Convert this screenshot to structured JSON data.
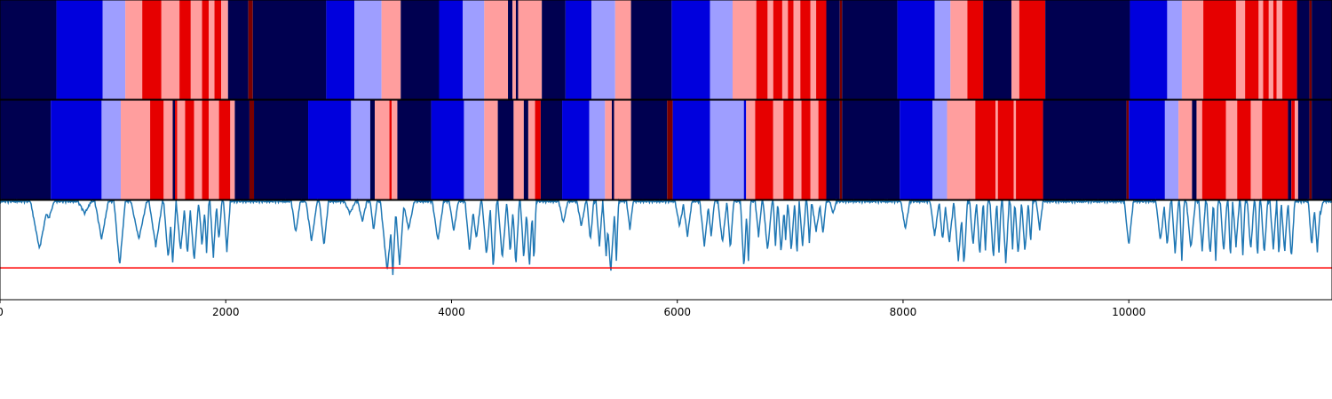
{
  "chart_data": [
    {
      "type": "heatmap",
      "title": "",
      "xlim": [
        0,
        11800
      ],
      "colors": {
        "0": "#000050",
        "1": "#0000dd",
        "2": "#9e9eff",
        "3": "#ff9e9e",
        "4": "#e60000",
        "5": "#7a0000"
      },
      "segments": [
        [
          0,
          500,
          0
        ],
        [
          500,
          910,
          1
        ],
        [
          910,
          1110,
          2
        ],
        [
          1110,
          1260,
          3
        ],
        [
          1260,
          1430,
          4
        ],
        [
          1430,
          1590,
          3
        ],
        [
          1590,
          1690,
          4
        ],
        [
          1690,
          1790,
          3
        ],
        [
          1790,
          1850,
          4
        ],
        [
          1850,
          1900,
          3
        ],
        [
          1900,
          1960,
          4
        ],
        [
          1960,
          2020,
          3
        ],
        [
          2020,
          2200,
          0
        ],
        [
          2200,
          2240,
          5
        ],
        [
          2240,
          2890,
          0
        ],
        [
          2890,
          3140,
          1
        ],
        [
          3140,
          3380,
          2
        ],
        [
          3380,
          3550,
          3
        ],
        [
          3550,
          3890,
          0
        ],
        [
          3890,
          4100,
          1
        ],
        [
          4100,
          4290,
          2
        ],
        [
          4290,
          4500,
          3
        ],
        [
          4500,
          4540,
          0
        ],
        [
          4540,
          4570,
          3
        ],
        [
          4570,
          4590,
          0
        ],
        [
          4590,
          4800,
          3
        ],
        [
          4800,
          5010,
          0
        ],
        [
          5010,
          5240,
          1
        ],
        [
          5240,
          5450,
          2
        ],
        [
          5450,
          5590,
          3
        ],
        [
          5590,
          5950,
          0
        ],
        [
          5950,
          6290,
          1
        ],
        [
          6290,
          6490,
          2
        ],
        [
          6490,
          6700,
          3
        ],
        [
          6700,
          6800,
          4
        ],
        [
          6800,
          6850,
          3
        ],
        [
          6850,
          6930,
          4
        ],
        [
          6930,
          6980,
          3
        ],
        [
          6980,
          7030,
          4
        ],
        [
          7030,
          7090,
          3
        ],
        [
          7090,
          7180,
          4
        ],
        [
          7180,
          7230,
          3
        ],
        [
          7230,
          7320,
          4
        ],
        [
          7320,
          7440,
          0
        ],
        [
          7440,
          7460,
          5
        ],
        [
          7460,
          7950,
          0
        ],
        [
          7950,
          8280,
          1
        ],
        [
          8280,
          8420,
          2
        ],
        [
          8420,
          8570,
          3
        ],
        [
          8570,
          8710,
          4
        ],
        [
          8710,
          8960,
          0
        ],
        [
          8960,
          9030,
          3
        ],
        [
          9030,
          9260,
          4
        ],
        [
          9260,
          10010,
          0
        ],
        [
          10010,
          10340,
          1
        ],
        [
          10340,
          10470,
          2
        ],
        [
          10470,
          10660,
          3
        ],
        [
          10660,
          10950,
          4
        ],
        [
          10950,
          11030,
          3
        ],
        [
          11030,
          11150,
          4
        ],
        [
          11150,
          11190,
          3
        ],
        [
          11190,
          11240,
          4
        ],
        [
          11240,
          11280,
          3
        ],
        [
          11280,
          11310,
          4
        ],
        [
          11310,
          11360,
          3
        ],
        [
          11360,
          11490,
          4
        ],
        [
          11490,
          11600,
          0
        ],
        [
          11600,
          11620,
          5
        ],
        [
          11620,
          11800,
          0
        ]
      ]
    },
    {
      "type": "heatmap",
      "title": "",
      "xlim": [
        0,
        11800
      ],
      "segments": [
        [
          0,
          450,
          0
        ],
        [
          450,
          900,
          1
        ],
        [
          900,
          1070,
          2
        ],
        [
          1070,
          1330,
          3
        ],
        [
          1330,
          1450,
          4
        ],
        [
          1450,
          1530,
          3
        ],
        [
          1530,
          1550,
          0
        ],
        [
          1550,
          1570,
          4
        ],
        [
          1570,
          1640,
          3
        ],
        [
          1640,
          1720,
          4
        ],
        [
          1720,
          1790,
          3
        ],
        [
          1790,
          1850,
          4
        ],
        [
          1850,
          1940,
          3
        ],
        [
          1940,
          2040,
          4
        ],
        [
          2040,
          2080,
          3
        ],
        [
          2080,
          2210,
          0
        ],
        [
          2210,
          2250,
          5
        ],
        [
          2250,
          2730,
          0
        ],
        [
          2730,
          3110,
          1
        ],
        [
          3110,
          3280,
          2
        ],
        [
          3280,
          3320,
          0
        ],
        [
          3320,
          3450,
          3
        ],
        [
          3450,
          3470,
          4
        ],
        [
          3470,
          3520,
          3
        ],
        [
          3520,
          3820,
          0
        ],
        [
          3820,
          4110,
          1
        ],
        [
          4110,
          4290,
          2
        ],
        [
          4290,
          4410,
          3
        ],
        [
          4410,
          4550,
          0
        ],
        [
          4550,
          4640,
          3
        ],
        [
          4640,
          4680,
          0
        ],
        [
          4680,
          4740,
          3
        ],
        [
          4740,
          4790,
          4
        ],
        [
          4790,
          4980,
          0
        ],
        [
          4980,
          5220,
          1
        ],
        [
          5220,
          5360,
          2
        ],
        [
          5360,
          5420,
          3
        ],
        [
          5420,
          5440,
          0
        ],
        [
          5440,
          5590,
          3
        ],
        [
          5590,
          5910,
          0
        ],
        [
          5910,
          5960,
          5
        ],
        [
          5960,
          6290,
          1
        ],
        [
          6290,
          6590,
          2
        ],
        [
          6590,
          6610,
          1
        ],
        [
          6610,
          6690,
          3
        ],
        [
          6690,
          6850,
          4
        ],
        [
          6850,
          6940,
          3
        ],
        [
          6940,
          7030,
          4
        ],
        [
          7030,
          7100,
          3
        ],
        [
          7100,
          7180,
          4
        ],
        [
          7180,
          7250,
          3
        ],
        [
          7250,
          7320,
          4
        ],
        [
          7320,
          7440,
          0
        ],
        [
          7440,
          7460,
          5
        ],
        [
          7460,
          7970,
          0
        ],
        [
          7970,
          8260,
          1
        ],
        [
          8260,
          8390,
          2
        ],
        [
          8390,
          8640,
          3
        ],
        [
          8640,
          8820,
          4
        ],
        [
          8820,
          8840,
          3
        ],
        [
          8840,
          8980,
          4
        ],
        [
          8980,
          9000,
          3
        ],
        [
          9000,
          9240,
          4
        ],
        [
          9240,
          9980,
          0
        ],
        [
          9980,
          10000,
          5
        ],
        [
          10000,
          10320,
          1
        ],
        [
          10320,
          10440,
          2
        ],
        [
          10440,
          10560,
          3
        ],
        [
          10560,
          10600,
          0
        ],
        [
          10600,
          10650,
          3
        ],
        [
          10650,
          10860,
          4
        ],
        [
          10860,
          10960,
          3
        ],
        [
          10960,
          11080,
          4
        ],
        [
          11080,
          11180,
          3
        ],
        [
          11180,
          11410,
          4
        ],
        [
          11410,
          11440,
          0
        ],
        [
          11440,
          11470,
          4
        ],
        [
          11470,
          11500,
          3
        ],
        [
          11500,
          11600,
          0
        ],
        [
          11600,
          11620,
          5
        ],
        [
          11620,
          11800,
          0
        ]
      ]
    },
    {
      "type": "line",
      "title": "",
      "xlabel": "",
      "ylabel": "",
      "xlim": [
        0,
        11800
      ],
      "ylim": [
        0,
        1
      ],
      "xticks": [
        0,
        2000,
        4000,
        6000,
        8000,
        10000
      ],
      "xtick_labels": [
        "0",
        "2000",
        "4000",
        "6000",
        "8000",
        "10000"
      ],
      "line_color": "#1f77b4",
      "threshold": 0.32,
      "threshold_color": "#ff0000",
      "baseline": 1.0,
      "dips": [
        [
          350,
          80,
          0.52
        ],
        [
          430,
          50,
          0.82
        ],
        [
          750,
          60,
          0.88
        ],
        [
          900,
          60,
          0.62
        ],
        [
          1060,
          50,
          0.35
        ],
        [
          1230,
          70,
          0.62
        ],
        [
          1380,
          60,
          0.55
        ],
        [
          1490,
          40,
          0.42
        ],
        [
          1530,
          30,
          0.38
        ],
        [
          1600,
          40,
          0.5
        ],
        [
          1660,
          30,
          0.45
        ],
        [
          1720,
          40,
          0.4
        ],
        [
          1790,
          30,
          0.55
        ],
        [
          1830,
          20,
          0.48
        ],
        [
          1890,
          30,
          0.44
        ],
        [
          1940,
          25,
          0.6
        ],
        [
          2010,
          30,
          0.5
        ],
        [
          2620,
          40,
          0.68
        ],
        [
          2760,
          50,
          0.6
        ],
        [
          2870,
          40,
          0.55
        ],
        [
          3100,
          50,
          0.88
        ],
        [
          3210,
          40,
          0.8
        ],
        [
          3310,
          30,
          0.7
        ],
        [
          3430,
          60,
          0.3
        ],
        [
          3480,
          30,
          0.26
        ],
        [
          3540,
          40,
          0.35
        ],
        [
          3620,
          50,
          0.72
        ],
        [
          3880,
          50,
          0.6
        ],
        [
          4020,
          40,
          0.7
        ],
        [
          4160,
          40,
          0.5
        ],
        [
          4220,
          40,
          0.62
        ],
        [
          4310,
          40,
          0.45
        ],
        [
          4370,
          30,
          0.32
        ],
        [
          4450,
          40,
          0.42
        ],
        [
          4520,
          30,
          0.48
        ],
        [
          4570,
          30,
          0.35
        ],
        [
          4640,
          30,
          0.42
        ],
        [
          4690,
          30,
          0.33
        ],
        [
          4730,
          20,
          0.38
        ],
        [
          4990,
          40,
          0.78
        ],
        [
          5150,
          40,
          0.75
        ],
        [
          5230,
          30,
          0.6
        ],
        [
          5310,
          30,
          0.55
        ],
        [
          5370,
          30,
          0.45
        ],
        [
          5410,
          40,
          0.28
        ],
        [
          5460,
          20,
          0.4
        ],
        [
          5580,
          30,
          0.72
        ],
        [
          6020,
          40,
          0.75
        ],
        [
          6090,
          40,
          0.65
        ],
        [
          6240,
          40,
          0.55
        ],
        [
          6300,
          30,
          0.65
        ],
        [
          6400,
          40,
          0.58
        ],
        [
          6470,
          30,
          0.52
        ],
        [
          6590,
          30,
          0.32
        ],
        [
          6630,
          20,
          0.4
        ],
        [
          6720,
          30,
          0.65
        ],
        [
          6800,
          40,
          0.5
        ],
        [
          6870,
          20,
          0.55
        ],
        [
          6920,
          30,
          0.48
        ],
        [
          6960,
          20,
          0.62
        ],
        [
          7010,
          30,
          0.5
        ],
        [
          7060,
          20,
          0.45
        ],
        [
          7110,
          30,
          0.55
        ],
        [
          7170,
          20,
          0.58
        ],
        [
          7230,
          40,
          0.7
        ],
        [
          7290,
          30,
          0.68
        ],
        [
          7380,
          30,
          0.88
        ],
        [
          8020,
          40,
          0.72
        ],
        [
          8280,
          40,
          0.65
        ],
        [
          8350,
          30,
          0.6
        ],
        [
          8410,
          40,
          0.58
        ],
        [
          8490,
          40,
          0.4
        ],
        [
          8540,
          30,
          0.35
        ],
        [
          8620,
          30,
          0.55
        ],
        [
          8680,
          30,
          0.45
        ],
        [
          8730,
          20,
          0.5
        ],
        [
          8800,
          30,
          0.42
        ],
        [
          8850,
          20,
          0.48
        ],
        [
          8910,
          30,
          0.38
        ],
        [
          8970,
          20,
          0.52
        ],
        [
          9020,
          30,
          0.45
        ],
        [
          9080,
          30,
          0.48
        ],
        [
          9130,
          20,
          0.58
        ],
        [
          9210,
          30,
          0.72
        ],
        [
          10000,
          40,
          0.55
        ],
        [
          10280,
          40,
          0.6
        ],
        [
          10340,
          30,
          0.55
        ],
        [
          10410,
          30,
          0.48
        ],
        [
          10470,
          20,
          0.4
        ],
        [
          10550,
          40,
          0.52
        ],
        [
          10650,
          30,
          0.5
        ],
        [
          10720,
          30,
          0.45
        ],
        [
          10770,
          20,
          0.4
        ],
        [
          10840,
          30,
          0.48
        ],
        [
          10900,
          20,
          0.42
        ],
        [
          10950,
          30,
          0.55
        ],
        [
          11010,
          20,
          0.45
        ],
        [
          11080,
          30,
          0.5
        ],
        [
          11140,
          20,
          0.42
        ],
        [
          11200,
          30,
          0.46
        ],
        [
          11280,
          30,
          0.52
        ],
        [
          11330,
          20,
          0.44
        ],
        [
          11380,
          30,
          0.48
        ],
        [
          11440,
          30,
          0.42
        ],
        [
          11620,
          30,
          0.55
        ],
        [
          11670,
          30,
          0.5
        ],
        [
          11700,
          20,
          0.88
        ]
      ]
    }
  ]
}
